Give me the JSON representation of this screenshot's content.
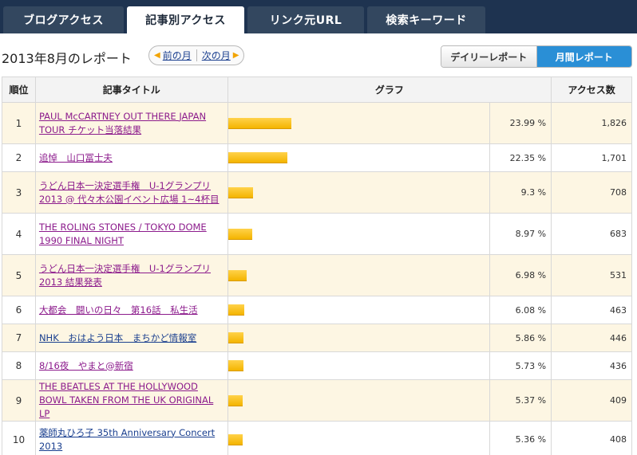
{
  "tabs": [
    {
      "label": "ブログアクセス"
    },
    {
      "label": "記事別アクセス"
    },
    {
      "label": "リンク元URL"
    },
    {
      "label": "検索キーワード"
    }
  ],
  "report": {
    "title": "2013年8月のレポート",
    "prev_label": "前の月",
    "next_label": "次の月",
    "daily_label": "デイリーレポート",
    "monthly_label": "月間レポート"
  },
  "table": {
    "headers": {
      "rank": "順位",
      "title": "記事タイトル",
      "graph": "グラフ",
      "count": "アクセス数"
    },
    "rows": [
      {
        "rank": "1",
        "title": "PAUL McCARTNEY OUT THERE JAPAN TOUR チケット当落結果",
        "pct": "23.99 %",
        "pct_value": 23.99,
        "count": "1,826",
        "visited": true
      },
      {
        "rank": "2",
        "title": "追悼　山口冨士夫",
        "pct": "22.35 %",
        "pct_value": 22.35,
        "count": "1,701",
        "visited": true
      },
      {
        "rank": "3",
        "title": "うどん日本一決定選手権　U-1グランプリ2013 @ 代々木公園イベント広場 1~4杯目",
        "pct": "9.3 %",
        "pct_value": 9.3,
        "count": "708",
        "visited": true
      },
      {
        "rank": "4",
        "title": "THE ROLING STONES / TOKYO DOME 1990 FINAL NIGHT",
        "pct": "8.97 %",
        "pct_value": 8.97,
        "count": "683",
        "visited": true
      },
      {
        "rank": "5",
        "title": "うどん日本一決定選手権　U-1グランプリ2013 結果発表",
        "pct": "6.98 %",
        "pct_value": 6.98,
        "count": "531",
        "visited": true
      },
      {
        "rank": "6",
        "title": "大都会　闘いの日々　第16話　私生活",
        "pct": "6.08 %",
        "pct_value": 6.08,
        "count": "463",
        "visited": true
      },
      {
        "rank": "7",
        "title": "NHK　おはよう日本　まちかど情報室",
        "pct": "5.86 %",
        "pct_value": 5.86,
        "count": "446",
        "visited": false
      },
      {
        "rank": "8",
        "title": "8/16夜　やまと@新宿",
        "pct": "5.73 %",
        "pct_value": 5.73,
        "count": "436",
        "visited": true
      },
      {
        "rank": "9",
        "title": "THE BEATLES AT THE HOLLYWOOD BOWL TAKEN FROM THE UK ORIGINAL LP",
        "pct": "5.37 %",
        "pct_value": 5.37,
        "count": "409",
        "visited": true
      },
      {
        "rank": "10",
        "title": "薬師丸ひろ子 35th Anniversary Concert 2013",
        "pct": "5.36 %",
        "pct_value": 5.36,
        "count": "408",
        "visited": false
      }
    ]
  }
}
